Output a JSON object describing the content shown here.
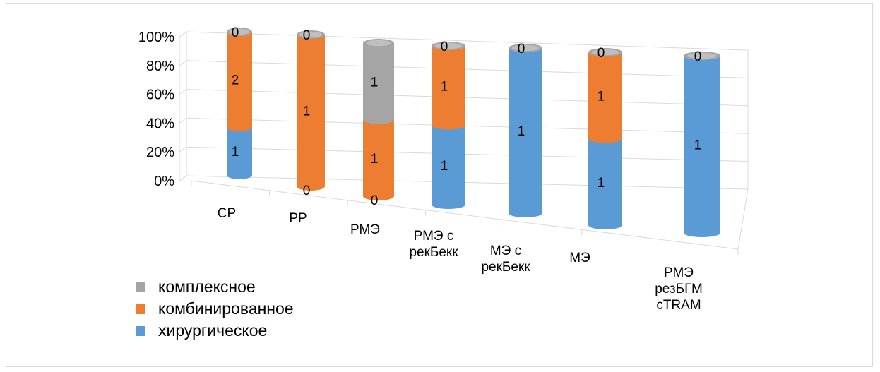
{
  "chart_data": {
    "type": "bar",
    "stacked": "percent",
    "style": "3d-cylinder",
    "categories": [
      [
        "СР"
      ],
      [
        "РР"
      ],
      [
        "РМЭ"
      ],
      [
        "РМЭ с",
        "рекБекк"
      ],
      [
        "МЭ с",
        "рекБекк"
      ],
      [
        "МЭ"
      ],
      [
        "РМЭ",
        "резБГМ",
        "cTRAM"
      ]
    ],
    "series": [
      {
        "name": "хирургическое",
        "color": "#5b9bd5",
        "values": [
          1,
          0,
          0,
          1,
          1,
          1,
          1
        ]
      },
      {
        "name": "комбинированное",
        "color": "#ed7d31",
        "values": [
          2,
          1,
          1,
          1,
          0,
          1,
          0
        ]
      },
      {
        "name": "комплексное",
        "color": "#a5a5a5",
        "values": [
          0,
          0,
          1,
          0,
          0,
          0,
          0
        ]
      }
    ],
    "data_labels": [
      {
        "category": 0,
        "series": 0,
        "text": "1"
      },
      {
        "category": 0,
        "series": 1,
        "text": "2"
      },
      {
        "category": 0,
        "series": 2,
        "text": "0"
      },
      {
        "category": 1,
        "series": 0,
        "text": "0"
      },
      {
        "category": 1,
        "series": 1,
        "text": "1"
      },
      {
        "category": 1,
        "series": 2,
        "text": "0"
      },
      {
        "category": 2,
        "series": 0,
        "text": "0"
      },
      {
        "category": 2,
        "series": 1,
        "text": "1"
      },
      {
        "category": 2,
        "series": 2,
        "text": "1"
      },
      {
        "category": 3,
        "series": 0,
        "text": "1"
      },
      {
        "category": 3,
        "series": 1,
        "text": "1"
      },
      {
        "category": 3,
        "series": 2,
        "text": "0"
      },
      {
        "category": 4,
        "series": 0,
        "text": "1"
      },
      {
        "category": 4,
        "series": 2,
        "text": "0"
      },
      {
        "category": 5,
        "series": 0,
        "text": "1"
      },
      {
        "category": 5,
        "series": 1,
        "text": "1"
      },
      {
        "category": 5,
        "series": 2,
        "text": "0"
      },
      {
        "category": 6,
        "series": 0,
        "text": "1"
      },
      {
        "category": 6,
        "series": 2,
        "text": "0"
      }
    ],
    "y_ticks": [
      "0%",
      "20%",
      "40%",
      "60%",
      "80%",
      "100%"
    ],
    "ylim": [
      0,
      100
    ],
    "grid": true,
    "legend_position": "bottom-left",
    "title": "",
    "xlabel": "",
    "ylabel": ""
  },
  "legend": {
    "items": [
      {
        "label": "комплексное",
        "color": "#a5a5a5"
      },
      {
        "label": "комбинированное",
        "color": "#ed7d31"
      },
      {
        "label": "хирургическое",
        "color": "#5b9bd5"
      }
    ]
  }
}
